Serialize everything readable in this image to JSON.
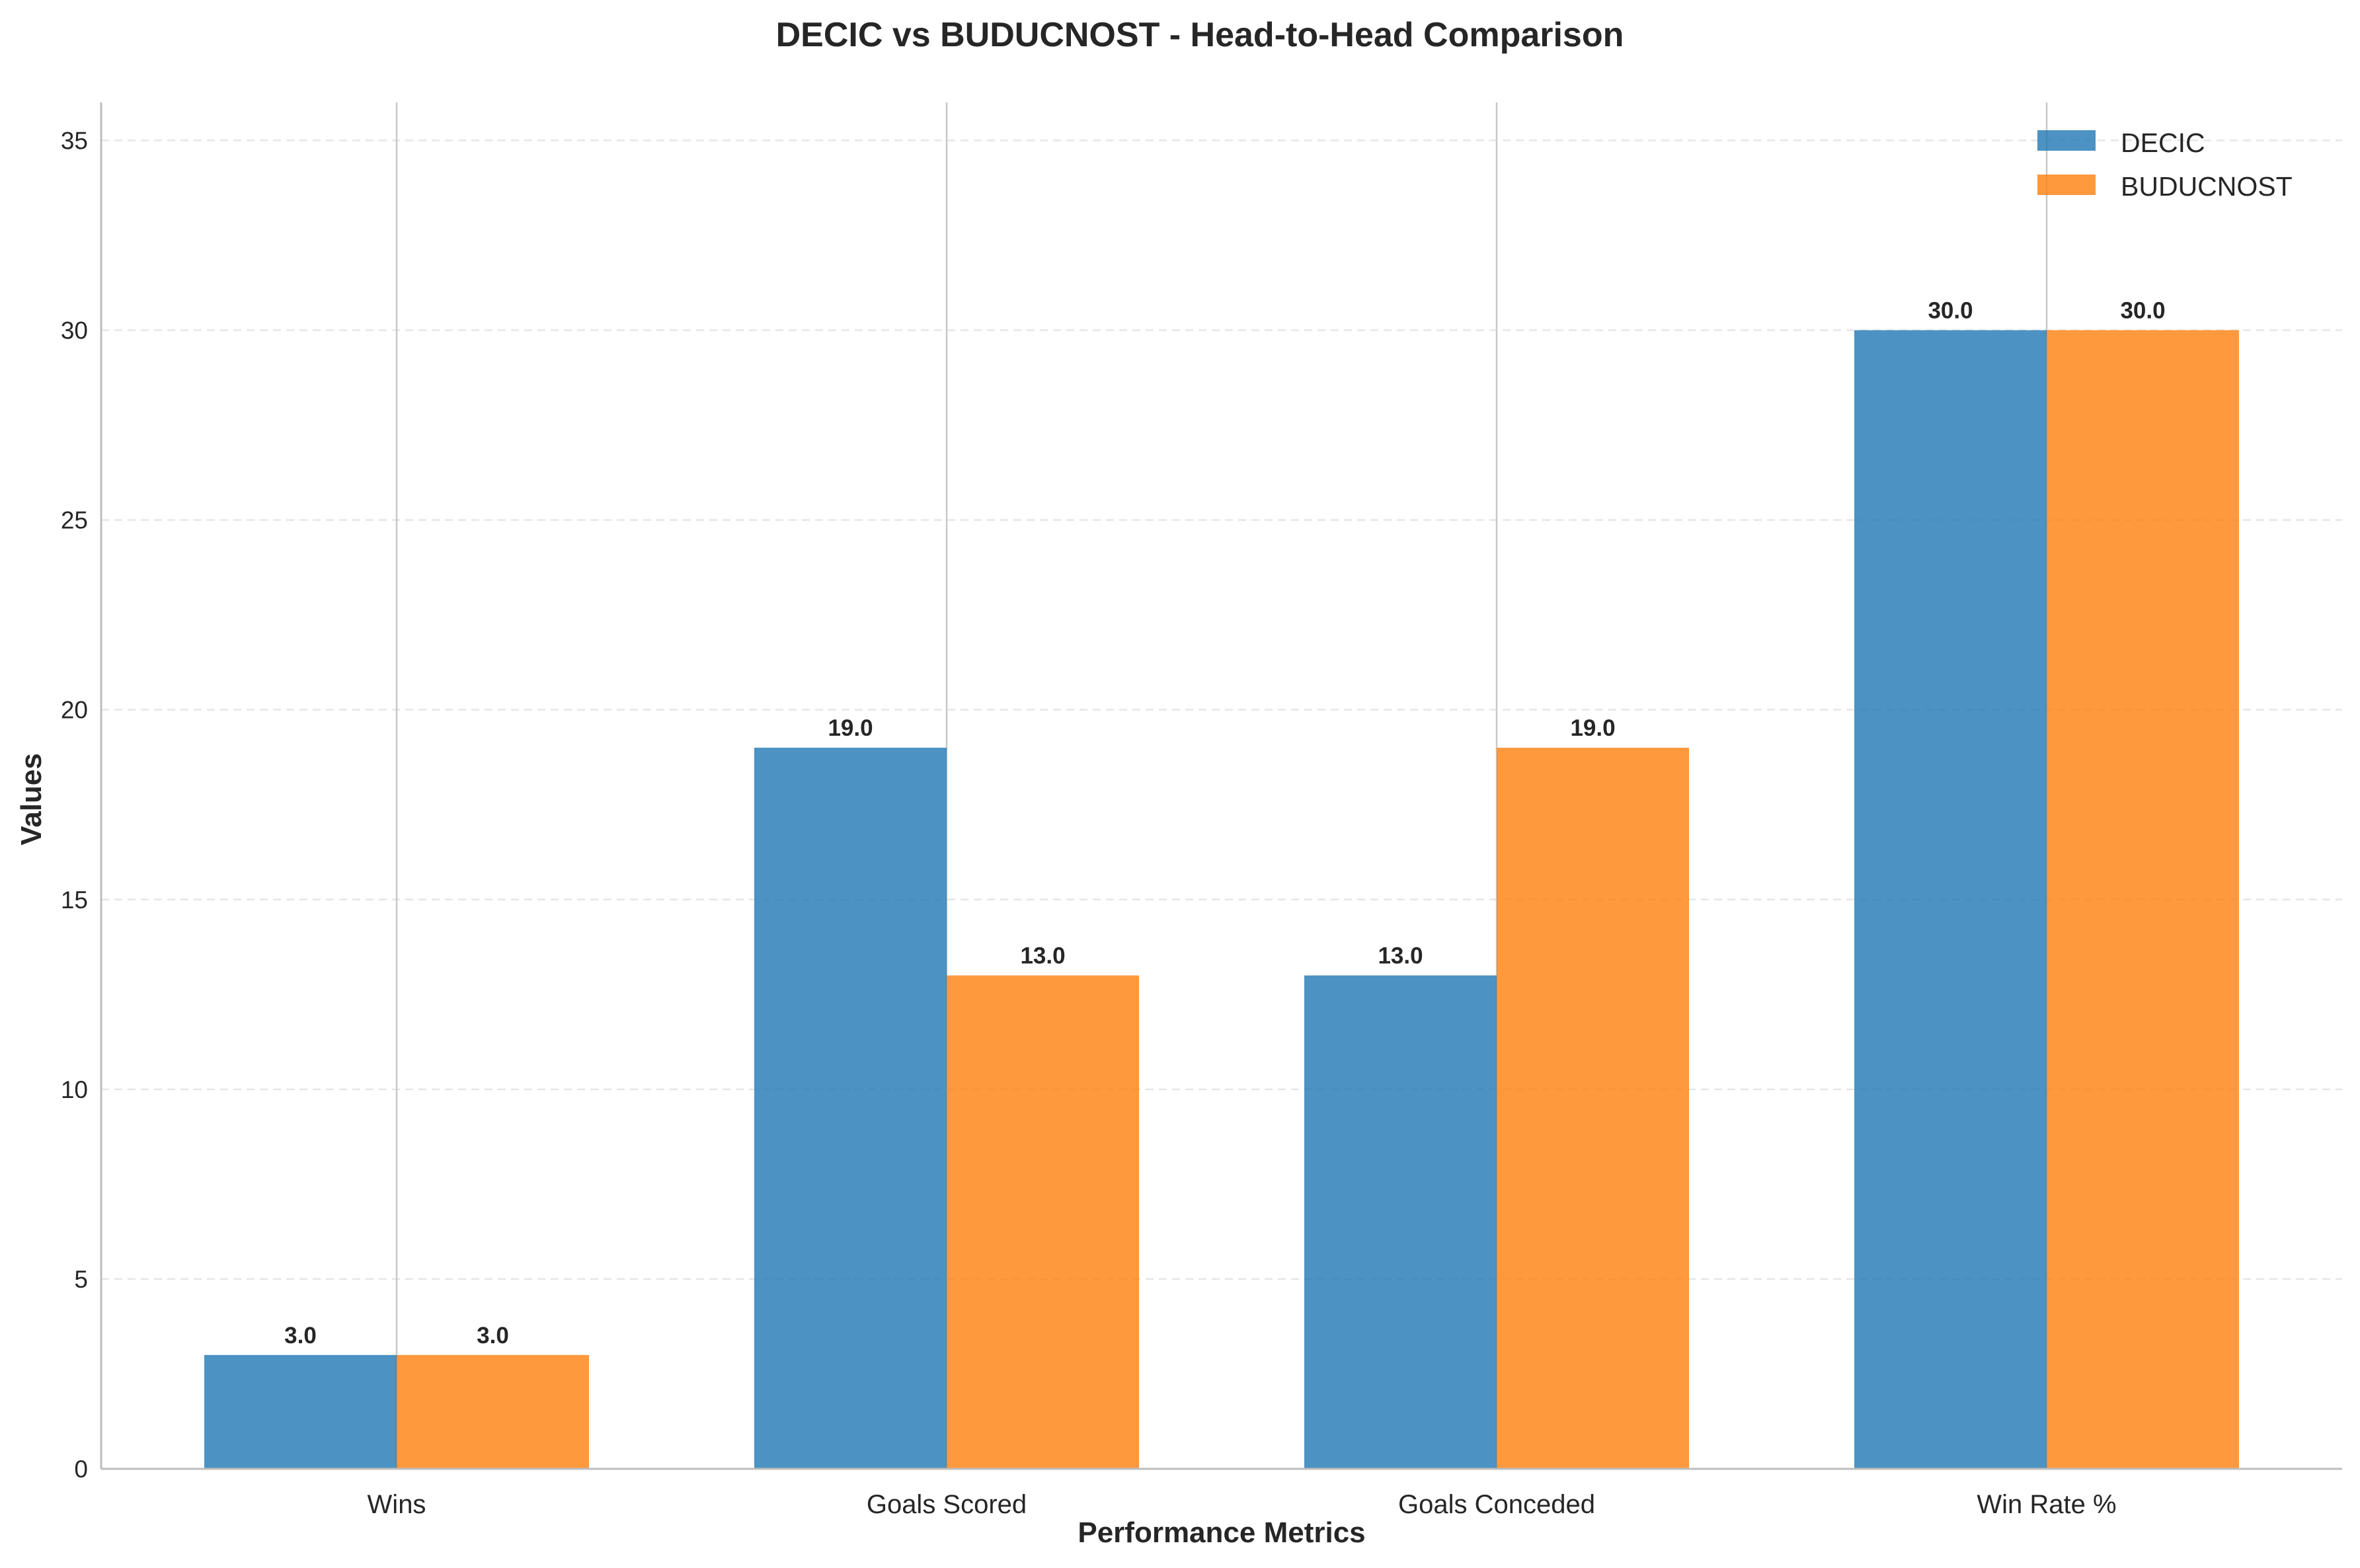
{
  "chart_data": {
    "type": "bar",
    "title": "DECIC vs BUDUCNOST - Head-to-Head Comparison",
    "xlabel": "Performance Metrics",
    "ylabel": "Values",
    "categories": [
      "Wins",
      "Goals Scored",
      "Goals Conceded",
      "Win Rate %"
    ],
    "series": [
      {
        "name": "DECIC",
        "values": [
          3,
          19,
          13,
          30
        ],
        "color": "#1f77b4"
      },
      {
        "name": "BUDUCNOST",
        "values": [
          3,
          13,
          19,
          30
        ],
        "color": "#ff7f0e"
      }
    ],
    "value_labels": [
      [
        "3.0",
        "19.0",
        "13.0",
        "30.0"
      ],
      [
        "3.0",
        "13.0",
        "19.0",
        "30.0"
      ]
    ],
    "ylim": [
      0,
      36
    ],
    "yticks": [
      0,
      5,
      10,
      15,
      20,
      25,
      30,
      35
    ],
    "ytick_labels": [
      "0",
      "5",
      "10",
      "15",
      "20",
      "25",
      "30",
      "35"
    ],
    "grid": true,
    "legend_position": "top-right"
  }
}
